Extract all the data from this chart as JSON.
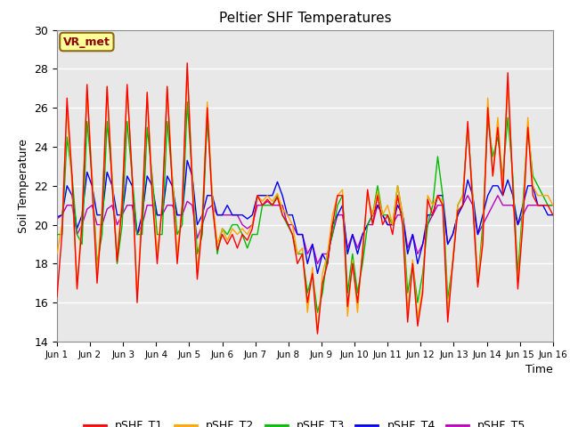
{
  "title": "Peltier SHF Temperatures",
  "xlabel": "Time",
  "ylabel": "Soil Temperature",
  "ylim": [
    14,
    30
  ],
  "xlim": [
    0,
    15
  ],
  "xtick_labels": [
    "Jun 1",
    "Jun 2",
    "Jun 3",
    "Jun 4",
    "Jun 5",
    "Jun 6",
    "Jun 7",
    "Jun 8",
    "Jun 9",
    "Jun 10",
    "Jun 11",
    "Jun 12",
    "Jun 13",
    "Jun 14",
    "Jun 15",
    "Jun 16"
  ],
  "ytick_values": [
    14,
    16,
    18,
    20,
    22,
    24,
    26,
    28,
    30
  ],
  "annotation_text": "VR_met",
  "annotation_color": "#8B0000",
  "annotation_bg": "#FFFF99",
  "line_colors": {
    "pSHF_T1": "#FF0000",
    "pSHF_T2": "#FFA500",
    "pSHF_T3": "#00BB00",
    "pSHF_T4": "#0000EE",
    "pSHF_T5": "#BB00BB"
  },
  "bg_color": "#E8E8E8",
  "grid_color": "#FFFFFF",
  "T1": [
    16.3,
    19.5,
    26.5,
    22.5,
    16.7,
    20.0,
    27.2,
    22.0,
    17.0,
    20.5,
    27.1,
    22.0,
    18.1,
    21.0,
    27.2,
    22.5,
    16.0,
    20.5,
    26.8,
    21.5,
    18.0,
    21.0,
    27.1,
    22.0,
    18.0,
    21.0,
    28.3,
    22.0,
    17.2,
    20.0,
    26.0,
    21.0,
    18.7,
    19.5,
    19.0,
    19.5,
    18.8,
    19.5,
    19.2,
    19.8,
    21.5,
    21.0,
    21.3,
    21.0,
    21.4,
    20.5,
    20.1,
    19.5,
    18.0,
    18.5,
    16.0,
    17.5,
    14.4,
    17.0,
    18.0,
    20.0,
    21.5,
    21.5,
    15.8,
    18.0,
    16.0,
    18.5,
    21.8,
    20.0,
    21.5,
    20.0,
    20.5,
    19.5,
    21.5,
    20.0,
    15.0,
    18.0,
    14.8,
    16.5,
    21.3,
    20.5,
    21.5,
    21.0,
    15.0,
    18.0,
    20.7,
    21.0,
    25.3,
    21.0,
    16.8,
    19.0,
    26.0,
    22.5,
    25.0,
    21.5,
    27.8,
    22.0,
    16.7,
    20.0,
    25.0,
    21.5,
    21.0,
    21.0,
    21.0,
    20.5
  ],
  "T2": [
    18.5,
    20.0,
    26.0,
    22.0,
    16.8,
    20.5,
    27.0,
    22.5,
    17.5,
    21.0,
    27.0,
    22.5,
    18.3,
    21.5,
    27.0,
    22.5,
    16.2,
    21.0,
    26.7,
    22.0,
    18.5,
    21.0,
    27.0,
    22.5,
    18.5,
    21.0,
    28.0,
    22.5,
    17.5,
    20.5,
    26.3,
    21.5,
    19.0,
    19.8,
    19.2,
    19.8,
    19.5,
    19.8,
    19.5,
    20.0,
    21.5,
    21.2,
    21.5,
    21.2,
    21.6,
    20.8,
    20.5,
    20.0,
    18.5,
    18.8,
    15.5,
    17.8,
    14.5,
    17.5,
    18.5,
    20.5,
    21.5,
    21.8,
    15.3,
    18.2,
    15.5,
    18.8,
    21.5,
    20.5,
    21.7,
    20.5,
    21.0,
    20.0,
    22.0,
    20.5,
    15.5,
    18.2,
    15.2,
    16.8,
    21.5,
    21.0,
    21.5,
    21.2,
    15.5,
    18.2,
    21.0,
    21.5,
    25.0,
    21.5,
    17.0,
    19.5,
    26.5,
    22.5,
    25.5,
    22.0,
    27.2,
    22.0,
    17.0,
    20.5,
    25.5,
    22.0,
    21.5,
    21.5,
    21.5,
    21.0
  ],
  "T3": [
    19.5,
    19.5,
    24.5,
    22.5,
    19.5,
    19.0,
    25.3,
    22.5,
    18.0,
    19.5,
    25.3,
    22.5,
    18.0,
    20.0,
    25.3,
    22.5,
    19.5,
    19.5,
    25.0,
    22.5,
    19.5,
    19.5,
    25.3,
    22.5,
    19.5,
    20.0,
    26.3,
    22.5,
    18.5,
    19.5,
    25.5,
    21.5,
    18.5,
    19.8,
    19.5,
    20.0,
    20.0,
    19.5,
    18.8,
    19.5,
    19.5,
    21.0,
    21.0,
    21.0,
    21.5,
    20.5,
    20.0,
    19.5,
    18.5,
    18.5,
    16.5,
    17.5,
    15.5,
    16.5,
    18.5,
    19.5,
    21.0,
    21.5,
    16.5,
    18.5,
    16.5,
    18.0,
    20.0,
    20.5,
    22.0,
    20.5,
    20.5,
    20.0,
    22.0,
    20.5,
    16.5,
    18.0,
    16.0,
    17.5,
    20.0,
    21.0,
    23.5,
    21.5,
    16.2,
    18.0,
    21.0,
    21.5,
    25.0,
    21.5,
    17.0,
    20.0,
    25.5,
    23.5,
    24.5,
    22.5,
    25.5,
    22.5,
    17.5,
    21.0,
    25.0,
    22.5,
    22.0,
    21.5,
    21.0,
    21.0
  ],
  "T4": [
    20.4,
    20.5,
    22.0,
    21.5,
    19.8,
    20.5,
    22.7,
    22.0,
    20.5,
    20.5,
    22.7,
    22.0,
    20.5,
    20.5,
    22.5,
    22.0,
    19.5,
    20.5,
    22.5,
    22.0,
    20.5,
    20.5,
    22.5,
    22.0,
    20.5,
    20.5,
    23.3,
    22.5,
    20.0,
    20.5,
    21.5,
    21.5,
    20.5,
    20.5,
    21.0,
    20.5,
    20.5,
    20.5,
    20.3,
    20.5,
    21.5,
    21.5,
    21.5,
    21.5,
    22.2,
    21.5,
    20.5,
    20.5,
    19.5,
    19.5,
    18.0,
    19.0,
    17.5,
    18.5,
    18.0,
    20.0,
    20.5,
    21.0,
    18.5,
    19.5,
    18.5,
    19.5,
    20.0,
    20.5,
    21.0,
    20.5,
    20.0,
    20.0,
    21.0,
    20.5,
    18.5,
    19.5,
    18.0,
    19.0,
    20.5,
    20.5,
    21.5,
    21.5,
    19.0,
    19.5,
    20.5,
    21.0,
    22.3,
    21.5,
    19.5,
    20.5,
    21.5,
    22.0,
    22.0,
    21.5,
    22.3,
    21.5,
    20.0,
    21.0,
    22.0,
    22.0,
    21.0,
    21.0,
    20.5,
    20.5
  ],
  "T5": [
    20.3,
    20.5,
    21.0,
    21.0,
    19.5,
    20.0,
    20.8,
    21.0,
    20.0,
    20.0,
    20.8,
    21.0,
    20.0,
    20.5,
    21.0,
    21.0,
    19.5,
    20.0,
    21.0,
    21.0,
    20.5,
    20.5,
    21.0,
    21.0,
    20.5,
    20.5,
    21.2,
    21.0,
    19.3,
    20.0,
    20.8,
    21.0,
    20.5,
    20.5,
    20.5,
    20.5,
    20.5,
    20.0,
    19.8,
    20.0,
    21.0,
    21.0,
    21.2,
    21.0,
    21.0,
    21.0,
    20.0,
    20.0,
    19.5,
    19.5,
    18.5,
    19.0,
    18.0,
    18.5,
    18.5,
    19.5,
    20.5,
    20.5,
    18.8,
    19.5,
    18.8,
    19.5,
    20.0,
    20.0,
    21.0,
    20.5,
    20.0,
    20.0,
    20.5,
    20.5,
    18.8,
    19.5,
    18.5,
    19.0,
    20.0,
    20.5,
    21.0,
    21.0,
    19.0,
    19.5,
    20.5,
    21.0,
    21.5,
    21.0,
    19.5,
    20.0,
    20.5,
    21.0,
    21.5,
    21.0,
    21.0,
    21.0,
    20.0,
    20.5,
    21.0,
    21.0,
    21.0,
    21.0,
    21.0,
    21.0
  ]
}
